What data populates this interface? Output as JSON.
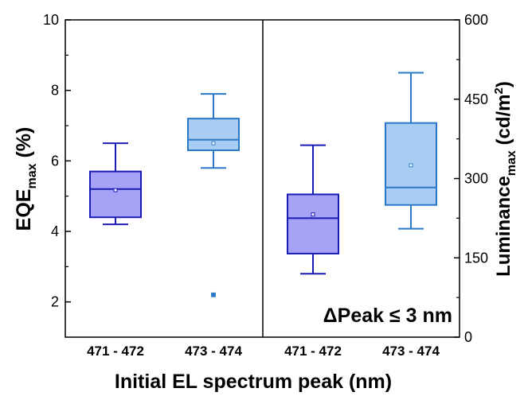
{
  "chart_data": {
    "type": "box",
    "xlabel": "Initial EL spectrum peak (nm)",
    "categories": [
      "471 - 472",
      "473 - 474",
      "471 - 472",
      "473 - 474"
    ],
    "left_panel": {
      "ylabel_main": "EQE",
      "ylabel_sub": "max",
      "ylabel_unit": " (%)",
      "ylim": [
        1,
        10
      ],
      "yticks": [
        "2",
        "4",
        "6",
        "8",
        "10"
      ],
      "boxes": [
        {
          "category": "471 - 472",
          "min": 4.2,
          "q1": 4.4,
          "median": 5.2,
          "q3": 5.7,
          "max": 6.5,
          "mean": 5.17,
          "outliers": [],
          "fill": "#a6a2f5",
          "stroke": "#1b1bb5"
        },
        {
          "category": "473 - 474",
          "min": 5.8,
          "q1": 6.3,
          "median": 6.6,
          "q3": 7.2,
          "max": 7.9,
          "mean": 6.5,
          "outliers": [
            2.2
          ],
          "fill": "#a9cdf2",
          "stroke": "#2a78c8"
        }
      ]
    },
    "right_panel": {
      "ylabel_main": "Luminance",
      "ylabel_sub": "max",
      "ylabel_unit": " (cd/m",
      "ylabel_sup": "2",
      "ylabel_close": ")",
      "ylim": [
        0,
        600
      ],
      "yticks": [
        "0",
        "150",
        "300",
        "450",
        "600"
      ],
      "boxes": [
        {
          "category": "471 - 472",
          "min": 120,
          "q1": 158,
          "median": 225,
          "q3": 270,
          "max": 363,
          "mean": 232,
          "outliers": [],
          "fill": "#a6a2f5",
          "stroke": "#1b1bb5"
        },
        {
          "category": "473 - 474",
          "min": 205,
          "q1": 250,
          "median": 283,
          "q3": 405,
          "max": 500,
          "mean": 325,
          "outliers": [],
          "fill": "#a9cdf2",
          "stroke": "#2a78c8"
        }
      ]
    },
    "annotation": "ΔPeak ≤ 3 nm"
  }
}
